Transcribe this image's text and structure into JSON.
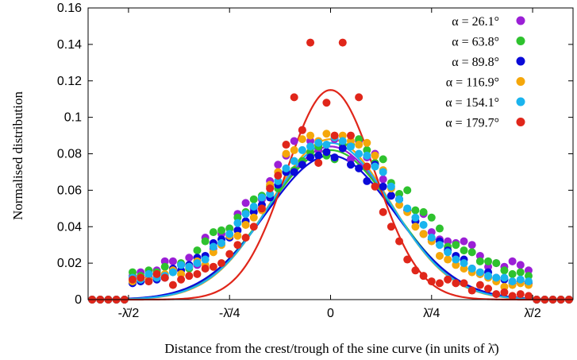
{
  "chart_data": {
    "type": "scatter",
    "title": "",
    "xlabel": "Distance from the crest/trough of the sine curve (in units of λ̄)",
    "ylabel": "Normalised distribution",
    "xlim": [
      -0.6,
      0.6
    ],
    "ylim": [
      0,
      0.16
    ],
    "yticks": [
      0,
      0.02,
      0.04,
      0.06,
      0.08,
      0.1,
      0.12,
      0.14,
      0.16
    ],
    "ytick_labels": [
      "0",
      "0.02",
      "0.04",
      "0.06",
      "0.08",
      "0.1",
      "0.12",
      "0.14",
      "0.16"
    ],
    "xticks": [
      -0.5,
      -0.25,
      0,
      0.25,
      0.5
    ],
    "xtick_labels": [
      "-λ̄/2",
      "-λ̄/4",
      "0",
      "λ̄/4",
      "λ̄/2"
    ],
    "grid": false,
    "legend_position": "top-right",
    "series": [
      {
        "name": "α = 26.1°",
        "color": "#9b1fd6",
        "fit_peak": 0.084,
        "fit_sigma": 0.152,
        "x": [
          -0.59,
          -0.57,
          -0.55,
          -0.53,
          -0.51,
          -0.49,
          -0.47,
          -0.45,
          -0.43,
          -0.41,
          -0.39,
          -0.37,
          -0.35,
          -0.33,
          -0.31,
          -0.29,
          -0.27,
          -0.25,
          -0.23,
          -0.21,
          -0.19,
          -0.17,
          -0.15,
          -0.13,
          -0.11,
          -0.09,
          -0.07,
          -0.05,
          -0.03,
          -0.01,
          0.01,
          0.03,
          0.05,
          0.07,
          0.09,
          0.11,
          0.13,
          0.15,
          0.17,
          0.19,
          0.21,
          0.23,
          0.25,
          0.27,
          0.29,
          0.31,
          0.33,
          0.35,
          0.37,
          0.39,
          0.41,
          0.43,
          0.45,
          0.47,
          0.49,
          0.51,
          0.53,
          0.55,
          0.57,
          0.59
        ],
        "y": [
          0.0,
          0.0,
          0.0,
          0.0,
          0.0,
          0.013,
          0.015,
          0.012,
          0.016,
          0.021,
          0.021,
          0.019,
          0.023,
          0.019,
          0.034,
          0.028,
          0.036,
          0.039,
          0.047,
          0.053,
          0.05,
          0.055,
          0.065,
          0.074,
          0.079,
          0.087,
          0.093,
          0.087,
          0.082,
          0.081,
          0.088,
          0.083,
          0.077,
          0.087,
          0.078,
          0.08,
          0.066,
          0.057,
          0.055,
          0.049,
          0.043,
          0.047,
          0.037,
          0.033,
          0.032,
          0.031,
          0.032,
          0.03,
          0.024,
          0.018,
          0.02,
          0.018,
          0.021,
          0.019,
          0.016,
          0.0,
          0.0,
          0.0,
          0.0,
          0.0
        ]
      },
      {
        "name": "α = 63.8°",
        "color": "#2ec22e",
        "fit_peak": 0.082,
        "fit_sigma": 0.156,
        "x": [
          -0.59,
          -0.57,
          -0.55,
          -0.53,
          -0.51,
          -0.49,
          -0.47,
          -0.45,
          -0.43,
          -0.41,
          -0.39,
          -0.37,
          -0.35,
          -0.33,
          -0.31,
          -0.29,
          -0.27,
          -0.25,
          -0.23,
          -0.21,
          -0.19,
          -0.17,
          -0.15,
          -0.13,
          -0.11,
          -0.09,
          -0.07,
          -0.05,
          -0.03,
          -0.01,
          0.01,
          0.03,
          0.05,
          0.07,
          0.09,
          0.11,
          0.13,
          0.15,
          0.17,
          0.19,
          0.21,
          0.23,
          0.25,
          0.27,
          0.29,
          0.31,
          0.33,
          0.35,
          0.37,
          0.39,
          0.41,
          0.43,
          0.45,
          0.47,
          0.49,
          0.51,
          0.53,
          0.55,
          0.57,
          0.59
        ],
        "y": [
          0.0,
          0.0,
          0.0,
          0.0,
          0.0,
          0.015,
          0.013,
          0.016,
          0.015,
          0.018,
          0.016,
          0.02,
          0.017,
          0.027,
          0.032,
          0.037,
          0.038,
          0.039,
          0.045,
          0.048,
          0.055,
          0.057,
          0.062,
          0.061,
          0.07,
          0.071,
          0.076,
          0.081,
          0.084,
          0.079,
          0.077,
          0.085,
          0.085,
          0.088,
          0.082,
          0.075,
          0.077,
          0.064,
          0.058,
          0.06,
          0.049,
          0.048,
          0.045,
          0.039,
          0.029,
          0.03,
          0.027,
          0.026,
          0.021,
          0.021,
          0.02,
          0.016,
          0.014,
          0.015,
          0.013,
          0.0,
          0.0,
          0.0,
          0.0,
          0.0
        ]
      },
      {
        "name": "α = 89.8°",
        "color": "#0a0ad8",
        "fit_peak": 0.079,
        "fit_sigma": 0.158,
        "x": [
          -0.59,
          -0.57,
          -0.55,
          -0.53,
          -0.51,
          -0.49,
          -0.47,
          -0.45,
          -0.43,
          -0.41,
          -0.39,
          -0.37,
          -0.35,
          -0.33,
          -0.31,
          -0.29,
          -0.27,
          -0.25,
          -0.23,
          -0.21,
          -0.19,
          -0.17,
          -0.15,
          -0.13,
          -0.11,
          -0.09,
          -0.07,
          -0.05,
          -0.03,
          -0.01,
          0.01,
          0.03,
          0.05,
          0.07,
          0.09,
          0.11,
          0.13,
          0.15,
          0.17,
          0.19,
          0.21,
          0.23,
          0.25,
          0.27,
          0.29,
          0.31,
          0.33,
          0.35,
          0.37,
          0.39,
          0.41,
          0.43,
          0.45,
          0.47,
          0.49,
          0.51,
          0.53,
          0.55,
          0.57,
          0.59
        ],
        "y": [
          0.0,
          0.0,
          0.0,
          0.0,
          0.0,
          0.009,
          0.01,
          0.014,
          0.011,
          0.012,
          0.017,
          0.016,
          0.019,
          0.023,
          0.024,
          0.031,
          0.033,
          0.034,
          0.038,
          0.043,
          0.048,
          0.052,
          0.056,
          0.063,
          0.07,
          0.07,
          0.074,
          0.078,
          0.079,
          0.081,
          0.078,
          0.083,
          0.074,
          0.072,
          0.065,
          0.074,
          0.062,
          0.057,
          0.055,
          0.049,
          0.043,
          0.036,
          0.033,
          0.032,
          0.027,
          0.024,
          0.022,
          0.017,
          0.014,
          0.015,
          0.012,
          0.011,
          0.009,
          0.01,
          0.009,
          0.0,
          0.0,
          0.0,
          0.0,
          0.0
        ]
      },
      {
        "name": "α = 116.9°",
        "color": "#f5a70a",
        "fit_peak": 0.088,
        "fit_sigma": 0.148,
        "x": [
          -0.59,
          -0.57,
          -0.55,
          -0.53,
          -0.51,
          -0.49,
          -0.47,
          -0.45,
          -0.43,
          -0.41,
          -0.39,
          -0.37,
          -0.35,
          -0.33,
          -0.31,
          -0.29,
          -0.27,
          -0.25,
          -0.23,
          -0.21,
          -0.19,
          -0.17,
          -0.15,
          -0.13,
          -0.11,
          -0.09,
          -0.07,
          -0.05,
          -0.03,
          -0.01,
          0.01,
          0.03,
          0.05,
          0.07,
          0.09,
          0.11,
          0.13,
          0.15,
          0.17,
          0.19,
          0.21,
          0.23,
          0.25,
          0.27,
          0.29,
          0.31,
          0.33,
          0.35,
          0.37,
          0.39,
          0.41,
          0.43,
          0.45,
          0.47,
          0.49,
          0.51,
          0.53,
          0.55,
          0.57,
          0.59
        ],
        "y": [
          0.0,
          0.0,
          0.0,
          0.0,
          0.0,
          0.01,
          0.012,
          0.011,
          0.013,
          0.014,
          0.016,
          0.014,
          0.018,
          0.021,
          0.019,
          0.026,
          0.03,
          0.035,
          0.035,
          0.041,
          0.045,
          0.049,
          0.063,
          0.07,
          0.08,
          0.082,
          0.088,
          0.09,
          0.087,
          0.091,
          0.089,
          0.09,
          0.087,
          0.085,
          0.086,
          0.079,
          0.071,
          0.061,
          0.052,
          0.048,
          0.04,
          0.036,
          0.032,
          0.024,
          0.022,
          0.019,
          0.017,
          0.015,
          0.014,
          0.012,
          0.01,
          0.007,
          0.008,
          0.009,
          0.008,
          0.0,
          0.0,
          0.0,
          0.0,
          0.0
        ]
      },
      {
        "name": "α = 154.1°",
        "color": "#1ab4ee",
        "fit_peak": 0.086,
        "fit_sigma": 0.15,
        "x": [
          -0.59,
          -0.57,
          -0.55,
          -0.53,
          -0.51,
          -0.49,
          -0.47,
          -0.45,
          -0.43,
          -0.41,
          -0.39,
          -0.37,
          -0.35,
          -0.33,
          -0.31,
          -0.29,
          -0.27,
          -0.25,
          -0.23,
          -0.21,
          -0.19,
          -0.17,
          -0.15,
          -0.13,
          -0.11,
          -0.09,
          -0.07,
          -0.05,
          -0.03,
          -0.01,
          0.01,
          0.03,
          0.05,
          0.07,
          0.09,
          0.11,
          0.13,
          0.15,
          0.17,
          0.19,
          0.21,
          0.23,
          0.25,
          0.27,
          0.29,
          0.31,
          0.33,
          0.35,
          0.37,
          0.39,
          0.41,
          0.43,
          0.45,
          0.47,
          0.49,
          0.51,
          0.53,
          0.55,
          0.57,
          0.59
        ],
        "y": [
          0.0,
          0.0,
          0.0,
          0.0,
          0.0,
          0.012,
          0.011,
          0.014,
          0.012,
          0.013,
          0.015,
          0.019,
          0.018,
          0.02,
          0.022,
          0.029,
          0.031,
          0.036,
          0.042,
          0.047,
          0.051,
          0.056,
          0.058,
          0.065,
          0.072,
          0.076,
          0.082,
          0.084,
          0.086,
          0.085,
          0.089,
          0.087,
          0.084,
          0.08,
          0.079,
          0.073,
          0.07,
          0.062,
          0.055,
          0.05,
          0.045,
          0.041,
          0.034,
          0.03,
          0.026,
          0.022,
          0.02,
          0.017,
          0.015,
          0.013,
          0.012,
          0.012,
          0.01,
          0.011,
          0.01,
          0.0,
          0.0,
          0.0,
          0.0,
          0.0
        ]
      },
      {
        "name": "α = 179.7°",
        "color": "#e0261a",
        "fit_peak": 0.115,
        "fit_sigma": 0.11,
        "x": [
          -0.59,
          -0.57,
          -0.55,
          -0.53,
          -0.51,
          -0.49,
          -0.47,
          -0.45,
          -0.43,
          -0.41,
          -0.39,
          -0.37,
          -0.35,
          -0.33,
          -0.31,
          -0.29,
          -0.27,
          -0.25,
          -0.23,
          -0.21,
          -0.19,
          -0.17,
          -0.15,
          -0.13,
          -0.11,
          -0.09,
          -0.07,
          -0.05,
          -0.03,
          -0.01,
          0.01,
          0.03,
          0.05,
          0.07,
          0.09,
          0.11,
          0.13,
          0.15,
          0.17,
          0.19,
          0.21,
          0.23,
          0.25,
          0.27,
          0.29,
          0.31,
          0.33,
          0.35,
          0.37,
          0.39,
          0.41,
          0.43,
          0.45,
          0.47,
          0.49,
          0.51,
          0.53,
          0.55,
          0.57,
          0.59
        ],
        "y": [
          0.0,
          0.0,
          0.0,
          0.0,
          0.0,
          0.011,
          0.012,
          0.01,
          0.014,
          0.012,
          0.008,
          0.011,
          0.013,
          0.014,
          0.017,
          0.018,
          0.02,
          0.025,
          0.03,
          0.034,
          0.04,
          0.05,
          0.061,
          0.068,
          0.085,
          0.111,
          0.093,
          0.141,
          0.075,
          0.108,
          0.09,
          0.141,
          0.09,
          0.111,
          0.073,
          0.062,
          0.048,
          0.04,
          0.032,
          0.022,
          0.016,
          0.013,
          0.01,
          0.009,
          0.011,
          0.009,
          0.009,
          0.005,
          0.008,
          0.006,
          0.003,
          0.004,
          0.002,
          0.003,
          0.002,
          0.0,
          0.0,
          0.0,
          0.0,
          0.0
        ]
      }
    ]
  }
}
